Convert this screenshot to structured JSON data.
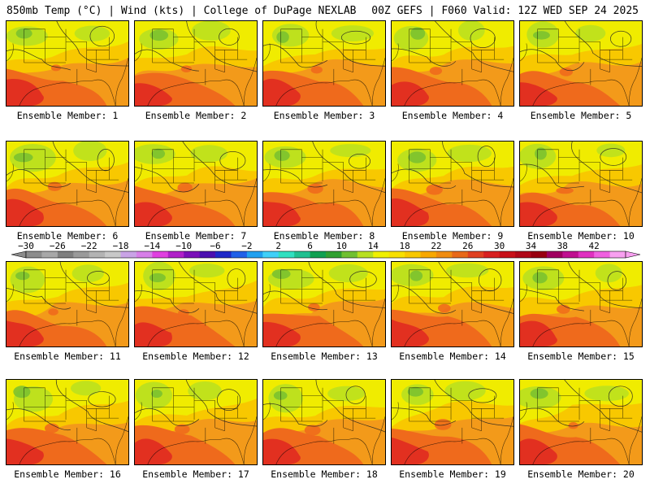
{
  "header": {
    "title_left": "850mb Temp (°C) | Wind (kts) | College of DuPage NEXLAB",
    "title_right": "00Z GEFS | F060 Valid: 12Z WED SEP 24 2025"
  },
  "panel_label_prefix": "Ensemble Member:",
  "members": [
    {
      "label": "Ensemble Member: 1",
      "number": 1
    },
    {
      "label": "Ensemble Member: 2",
      "number": 2
    },
    {
      "label": "Ensemble Member: 3",
      "number": 3
    },
    {
      "label": "Ensemble Member: 4",
      "number": 4
    },
    {
      "label": "Ensemble Member: 5",
      "number": 5
    },
    {
      "label": "Ensemble Member: 6",
      "number": 6
    },
    {
      "label": "Ensemble Member: 7",
      "number": 7
    },
    {
      "label": "Ensemble Member: 8",
      "number": 8
    },
    {
      "label": "Ensemble Member: 9",
      "number": 9
    },
    {
      "label": "Ensemble Member: 10",
      "number": 10
    },
    {
      "label": "Ensemble Member: 11",
      "number": 11
    },
    {
      "label": "Ensemble Member: 12",
      "number": 12
    },
    {
      "label": "Ensemble Member: 13",
      "number": 13
    },
    {
      "label": "Ensemble Member: 14",
      "number": 14
    },
    {
      "label": "Ensemble Member: 15",
      "number": 15
    },
    {
      "label": "Ensemble Member: 16",
      "number": 16
    },
    {
      "label": "Ensemble Member: 17",
      "number": 17
    },
    {
      "label": "Ensemble Member: 18",
      "number": 18
    },
    {
      "label": "Ensemble Member: 19",
      "number": 19
    },
    {
      "label": "Ensemble Member: 20",
      "number": 20
    }
  ],
  "colorbar": {
    "unit": "°C",
    "tick_labels": [
      "−30",
      "−26",
      "−22",
      "−18",
      "−14",
      "−10",
      "−6",
      "−2",
      "2",
      "6",
      "10",
      "14",
      "18",
      "22",
      "26",
      "30",
      "34",
      "38",
      "42"
    ],
    "colors": [
      "#8c8c8c",
      "#a8a8a8",
      "#7f7f7f",
      "#9a9a9a",
      "#b3b3b3",
      "#c8c8c8",
      "#c9a3e6",
      "#d77fe8",
      "#e040e0",
      "#b020c8",
      "#7a10b8",
      "#4b0fb0",
      "#1e28c8",
      "#2060e8",
      "#20a0f0",
      "#40d0f8",
      "#30e0c0",
      "#20c090",
      "#10a050",
      "#30a030",
      "#70c030",
      "#b8e020",
      "#f0f000",
      "#f8e000",
      "#f8c800",
      "#f8a800",
      "#f08c10",
      "#e86818",
      "#e04020",
      "#d82020",
      "#c81018",
      "#b00818",
      "#980010",
      "#a00060",
      "#c01090",
      "#e030c0",
      "#f060e0",
      "#f8a0f0"
    ]
  },
  "map_colors": {
    "orange": "#f39a1a",
    "deep_orange": "#ef6a1c",
    "red": "#e23020",
    "yellow_orange": "#f8c800",
    "yellow": "#f0ec00",
    "light_green": "#b8e020",
    "green": "#78c030"
  }
}
